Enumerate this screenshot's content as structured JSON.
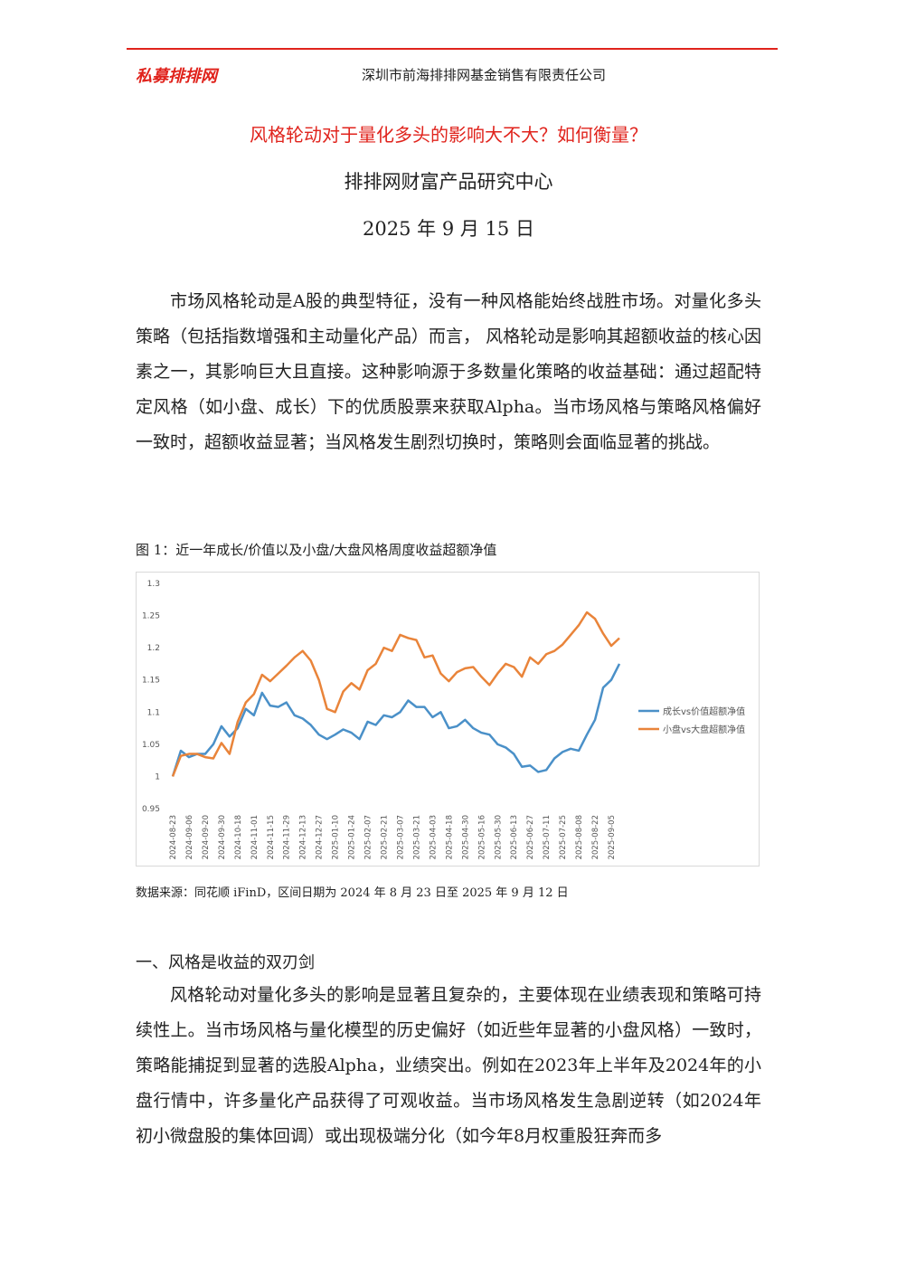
{
  "header": {
    "logo": "私募排排网",
    "company": "深圳市前海排排网基金销售有限责任公司"
  },
  "title": "风格轮动对于量化多头的影响大不大？如何衡量？",
  "author": "排排网财富产品研究中心",
  "date": "2025 年 9 月 15 日",
  "intro": "市场风格轮动是A股的典型特征，没有一种风格能始终战胜市场。对量化多头策略（包括指数增强和主动量化产品）而言， 风格轮动是影响其超额收益的核心因素之一，其影响巨大且直接。这种影响源于多数量化策略的收益基础：通过超配特定风格（如小盘、成长）下的优质股票来获取Alpha。当市场风格与策略风格偏好一致时，超额收益显著；当风格发生剧烈切换时，策略则会面临显著的挑战。",
  "figure": {
    "caption": "图 1：近一年成长/价值以及小盘/大盘风格周度收益超额净值",
    "source": "数据来源：同花顺 iFinD，区间日期为 2024 年 8 月 23 日至 2025 年 9 月 12 日"
  },
  "chart_data": {
    "type": "line",
    "categories": [
      "2024-08-23",
      null,
      "2024-09-06",
      null,
      "2024-09-20",
      null,
      "2024-09-30",
      null,
      "2024-10-18",
      null,
      "2024-11-01",
      null,
      "2024-11-15",
      null,
      "2024-11-29",
      null,
      "2024-12-13",
      null,
      "2024-12-27",
      null,
      "2025-01-10",
      null,
      "2025-01-24",
      null,
      "2025-02-07",
      null,
      "2025-02-21",
      null,
      "2025-03-07",
      null,
      "2025-03-21",
      null,
      "2025-04-03",
      null,
      "2025-04-18",
      null,
      "2025-04-30",
      null,
      "2025-05-16",
      null,
      "2025-05-30",
      null,
      "2025-06-13",
      null,
      "2025-06-27",
      null,
      "2025-07-11",
      null,
      "2025-07-25",
      null,
      "2025-08-08",
      null,
      "2025-08-22",
      null,
      "2025-09-05",
      null
    ],
    "series": [
      {
        "name": "成长vs价值超额净值",
        "color": "#4a90c8",
        "values": [
          1.0,
          1.04,
          1.03,
          1.035,
          1.035,
          1.05,
          1.078,
          1.062,
          1.075,
          1.105,
          1.095,
          1.13,
          1.11,
          1.108,
          1.115,
          1.095,
          1.09,
          1.08,
          1.065,
          1.058,
          1.065,
          1.073,
          1.068,
          1.058,
          1.085,
          1.08,
          1.095,
          1.092,
          1.1,
          1.118,
          1.108,
          1.108,
          1.092,
          1.1,
          1.075,
          1.078,
          1.088,
          1.075,
          1.068,
          1.065,
          1.05,
          1.045,
          1.035,
          1.015,
          1.017,
          1.007,
          1.01,
          1.028,
          1.038,
          1.043,
          1.04,
          1.065,
          1.088,
          1.138,
          1.15,
          1.175
        ]
      },
      {
        "name": "小盘vs大盘超额净值",
        "color": "#e9843a",
        "values": [
          1.0,
          1.032,
          1.035,
          1.035,
          1.03,
          1.028,
          1.052,
          1.035,
          1.085,
          1.115,
          1.128,
          1.158,
          1.148,
          1.16,
          1.172,
          1.185,
          1.195,
          1.18,
          1.15,
          1.105,
          1.1,
          1.132,
          1.145,
          1.135,
          1.165,
          1.175,
          1.2,
          1.195,
          1.22,
          1.215,
          1.212,
          1.185,
          1.188,
          1.16,
          1.148,
          1.162,
          1.168,
          1.17,
          1.155,
          1.142,
          1.16,
          1.175,
          1.17,
          1.155,
          1.185,
          1.175,
          1.19,
          1.195,
          1.205,
          1.22,
          1.235,
          1.255,
          1.245,
          1.222,
          1.203,
          1.215
        ]
      }
    ],
    "ylim": [
      0.95,
      1.3
    ],
    "yticks": [
      0.95,
      1,
      1.05,
      1.1,
      1.15,
      1.2,
      1.25,
      1.3
    ],
    "grid": false,
    "legend": "right"
  },
  "section": {
    "heading": "一、风格是收益的双刃剑",
    "body": "风格轮动对量化多头的影响是显著且复杂的，主要体现在业绩表现和策略可持续性上。当市场风格与量化模型的历史偏好（如近些年显著的小盘风格）一致时，策略能捕捉到显著的选股Alpha，业绩突出。例如在2023年上半年及2024年的小盘行情中，许多量化产品获得了可观收益。当市场风格发生急剧逆转（如2024年初小微盘股的集体回调）或出现极端分化（如今年8月权重股狂奔而多"
  }
}
